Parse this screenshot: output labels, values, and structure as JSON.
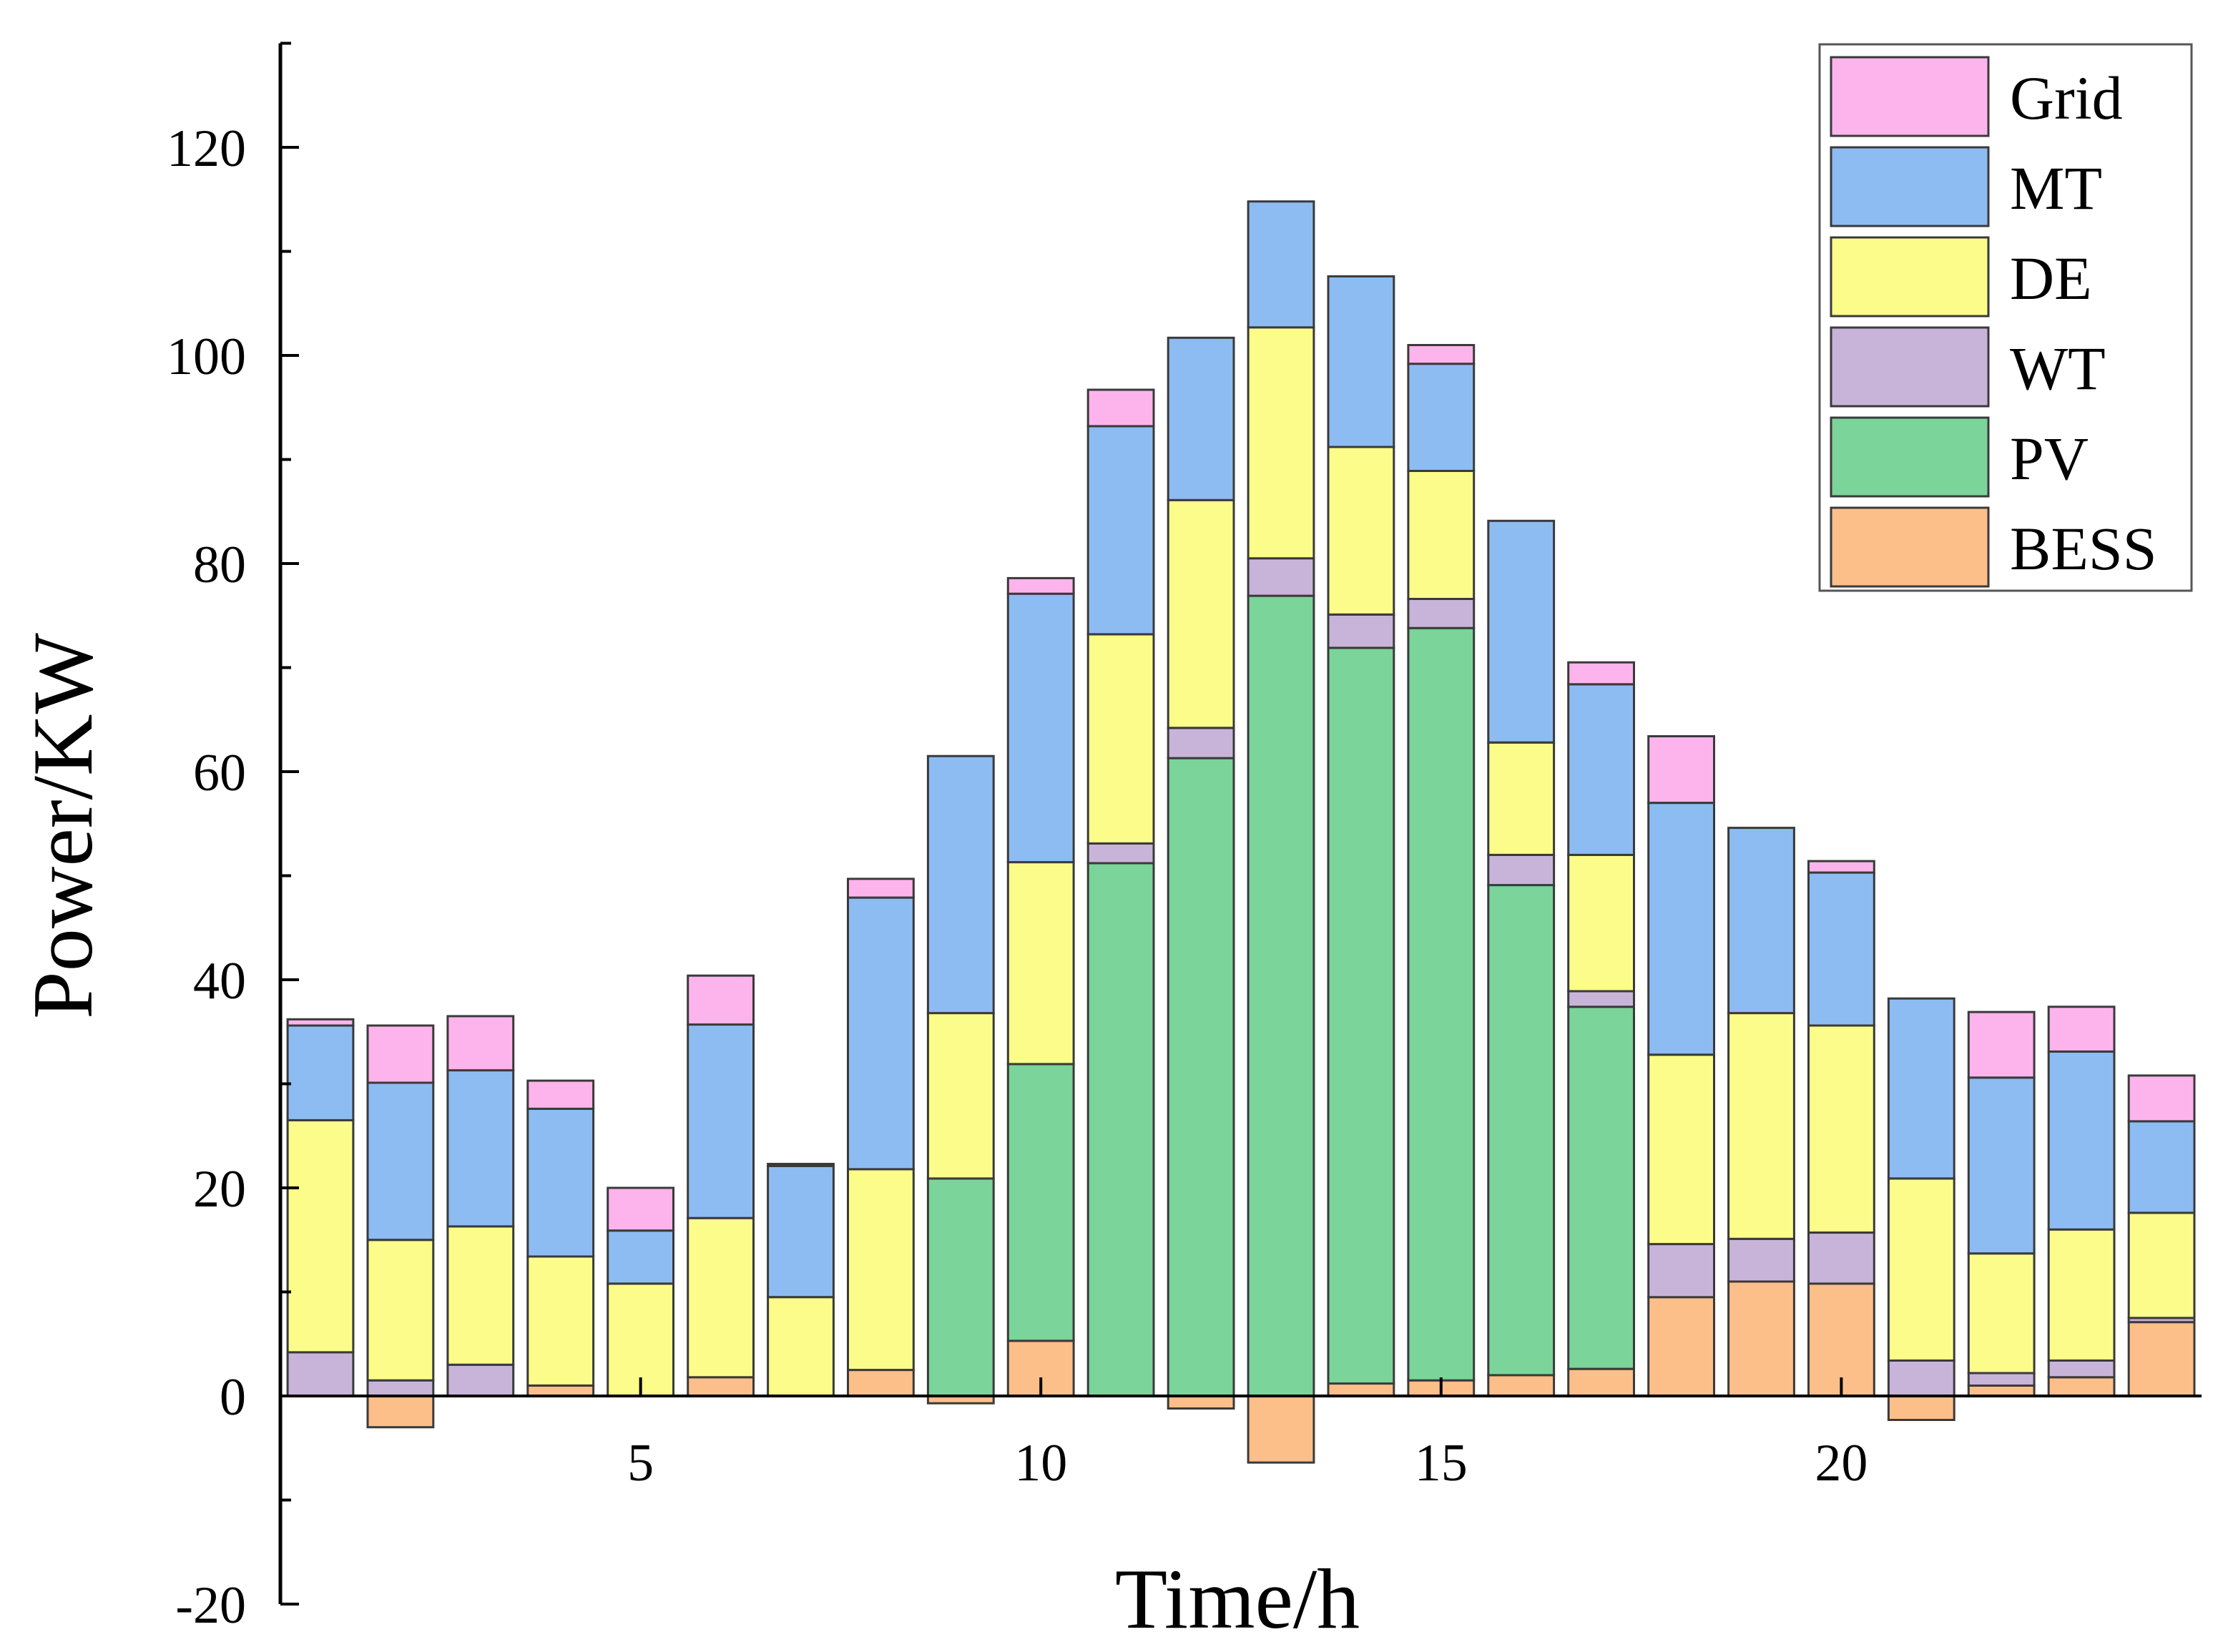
{
  "chart_data": {
    "type": "bar",
    "stacked": true,
    "title": "",
    "xlabel": "Time/h",
    "ylabel": "Power/KW",
    "xlim": [
      0.5,
      24.5
    ],
    "ylim": [
      -20,
      130
    ],
    "x_ticks": [
      5,
      10,
      15,
      20
    ],
    "y_ticks": [
      -20,
      0,
      20,
      40,
      60,
      80,
      100,
      120
    ],
    "legend_position": "top-right",
    "hours": [
      1,
      2,
      3,
      4,
      5,
      6,
      7,
      8,
      9,
      10,
      11,
      12,
      13,
      14,
      15,
      16,
      17,
      18,
      19,
      20,
      21,
      22,
      23,
      24
    ],
    "series": [
      {
        "name": "BESS",
        "color": "#FDBF8A",
        "values": [
          0,
          -3,
          0,
          1,
          0,
          1.8,
          0,
          2.5,
          -0.7,
          5.3,
          0,
          -1.2,
          -6.4,
          1.2,
          1.5,
          2,
          2.6,
          9.5,
          11,
          10.8,
          -2.3,
          1,
          1.8,
          7.1
        ]
      },
      {
        "name": "PV",
        "color": "#7BD49A",
        "values": [
          0,
          0,
          0,
          0,
          0,
          0,
          0,
          0,
          20.9,
          26.6,
          51.2,
          61.3,
          76.9,
          70.7,
          72.3,
          47.1,
          34.8,
          0,
          0,
          0,
          0,
          0,
          0,
          0
        ]
      },
      {
        "name": "WT",
        "color": "#C9B4D9",
        "values": [
          4.2,
          1.5,
          3,
          0,
          0,
          0,
          0,
          0,
          0,
          0,
          1.9,
          2.9,
          3.6,
          3.2,
          2.8,
          2.9,
          1.5,
          5.1,
          4.1,
          4.9,
          3.4,
          1.2,
          1.6,
          0.4
        ]
      },
      {
        "name": "DE",
        "color": "#FCFC8A",
        "values": [
          22.3,
          13.5,
          13.3,
          12.4,
          10.8,
          15.3,
          9.5,
          19.3,
          15.9,
          19.4,
          20.1,
          21.9,
          22.2,
          16.1,
          12.3,
          10.8,
          13.1,
          18.2,
          21.7,
          19.9,
          17.5,
          11.5,
          12.6,
          10.1
        ]
      },
      {
        "name": "MT",
        "color": "#8DBCF2",
        "values": [
          9.1,
          15.1,
          15,
          14.2,
          5.1,
          18.6,
          12.6,
          26.1,
          24.7,
          25.8,
          20,
          15.6,
          12.1,
          16.4,
          10.3,
          21.3,
          16.4,
          24.2,
          17.8,
          14.7,
          17.3,
          16.9,
          17.1,
          8.8
        ]
      },
      {
        "name": "Grid",
        "color": "#FDB4EC",
        "values": [
          0.6,
          5.5,
          5.2,
          2.7,
          4.1,
          4.7,
          0.2,
          1.8,
          0,
          1.5,
          3.5,
          0,
          0,
          0,
          1.8,
          0,
          2.1,
          6.4,
          0,
          1.1,
          0,
          6.3,
          4.3,
          4.4
        ]
      }
    ],
    "legend": [
      "Grid",
      "MT",
      "DE",
      "WT",
      "PV",
      "BESS"
    ],
    "colors": {
      "edge": "#3a3a3a",
      "axis": "#000000",
      "background": "#ffffff"
    }
  }
}
